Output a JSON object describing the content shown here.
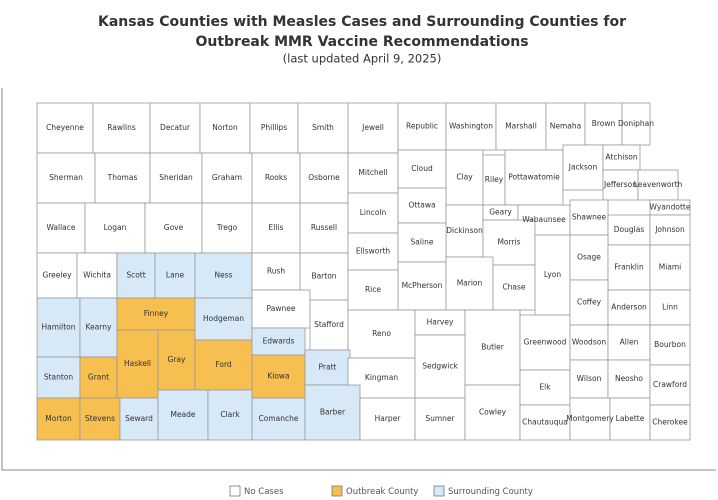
{
  "title": "Kansas Counties with Measles Cases and Surrounding Counties for",
  "title_line2": "Outbreak MMR Vaccine Recommendations",
  "subtitle": "(last updated April 9, 2025)",
  "legend": [
    {
      "name": "No Cases",
      "color": "#ffffff"
    },
    {
      "name": "Outbreak County",
      "color": "#f6bf4f"
    },
    {
      "name": "Surrounding County",
      "color": "#d7e8f6"
    }
  ],
  "counties": [
    {
      "name": "Cheyenne",
      "status": 0
    },
    {
      "name": "Rawlins",
      "status": 0
    },
    {
      "name": "Decatur",
      "status": 0
    },
    {
      "name": "Norton",
      "status": 0
    },
    {
      "name": "Phillips",
      "status": 0
    },
    {
      "name": "Smith",
      "status": 0
    },
    {
      "name": "Jewell",
      "status": 0
    },
    {
      "name": "Republic",
      "status": 0
    },
    {
      "name": "Washington",
      "status": 0
    },
    {
      "name": "Marshall",
      "status": 0
    },
    {
      "name": "Nemaha",
      "status": 0
    },
    {
      "name": "Brown",
      "status": 0
    },
    {
      "name": "Doniphan",
      "status": 0
    },
    {
      "name": "Sherman",
      "status": 0
    },
    {
      "name": "Thomas",
      "status": 0
    },
    {
      "name": "Sheridan",
      "status": 0
    },
    {
      "name": "Graham",
      "status": 0
    },
    {
      "name": "Rooks",
      "status": 0
    },
    {
      "name": "Osborne",
      "status": 0
    },
    {
      "name": "Mitchell",
      "status": 0
    },
    {
      "name": "Cloud",
      "status": 0
    },
    {
      "name": "Clay",
      "status": 0
    },
    {
      "name": "Riley",
      "status": 0
    },
    {
      "name": "Pottawatomie",
      "status": 0
    },
    {
      "name": "Jackson",
      "status": 0
    },
    {
      "name": "Atchison",
      "status": 0
    },
    {
      "name": "Jefferson",
      "status": 0
    },
    {
      "name": "Leavenworth",
      "status": 0
    },
    {
      "name": "Wyandotte",
      "status": 0
    },
    {
      "name": "Wallace",
      "status": 0
    },
    {
      "name": "Logan",
      "status": 0
    },
    {
      "name": "Gove",
      "status": 0
    },
    {
      "name": "Trego",
      "status": 0
    },
    {
      "name": "Ellis",
      "status": 0
    },
    {
      "name": "Russell",
      "status": 0
    },
    {
      "name": "Lincoln",
      "status": 0
    },
    {
      "name": "Ottawa",
      "status": 0
    },
    {
      "name": "Dickinson",
      "status": 0
    },
    {
      "name": "Geary",
      "status": 0
    },
    {
      "name": "Wabaunsee",
      "status": 0
    },
    {
      "name": "Shawnee",
      "status": 0
    },
    {
      "name": "Douglas",
      "status": 0
    },
    {
      "name": "Johnson",
      "status": 0
    },
    {
      "name": "Morris",
      "status": 0
    },
    {
      "name": "Greeley",
      "status": 0
    },
    {
      "name": "Wichita",
      "status": 0
    },
    {
      "name": "Scott",
      "status": 2
    },
    {
      "name": "Lane",
      "status": 2
    },
    {
      "name": "Ness",
      "status": 2
    },
    {
      "name": "Rush",
      "status": 0
    },
    {
      "name": "Barton",
      "status": 0
    },
    {
      "name": "Ellsworth",
      "status": 0
    },
    {
      "name": "Saline",
      "status": 0
    },
    {
      "name": "McPherson",
      "status": 0
    },
    {
      "name": "Marion",
      "status": 0
    },
    {
      "name": "Chase",
      "status": 0
    },
    {
      "name": "Lyon",
      "status": 0
    },
    {
      "name": "Osage",
      "status": 0
    },
    {
      "name": "Franklin",
      "status": 0
    },
    {
      "name": "Miami",
      "status": 0
    },
    {
      "name": "Hamilton",
      "status": 2
    },
    {
      "name": "Kearny",
      "status": 2
    },
    {
      "name": "Finney",
      "status": 1
    },
    {
      "name": "Hodgeman",
      "status": 2
    },
    {
      "name": "Pawnee",
      "status": 0
    },
    {
      "name": "Stafford",
      "status": 0
    },
    {
      "name": "Rice",
      "status": 0
    },
    {
      "name": "Reno",
      "status": 0
    },
    {
      "name": "Harvey",
      "status": 0
    },
    {
      "name": "Butler",
      "status": 0
    },
    {
      "name": "Greenwood",
      "status": 0
    },
    {
      "name": "Coffey",
      "status": 0
    },
    {
      "name": "Anderson",
      "status": 0
    },
    {
      "name": "Linn",
      "status": 0
    },
    {
      "name": "Stanton",
      "status": 2
    },
    {
      "name": "Grant",
      "status": 1
    },
    {
      "name": "Haskell",
      "status": 1
    },
    {
      "name": "Gray",
      "status": 1
    },
    {
      "name": "Ford",
      "status": 1
    },
    {
      "name": "Edwards",
      "status": 2
    },
    {
      "name": "Kiowa",
      "status": 1
    },
    {
      "name": "Pratt",
      "status": 2
    },
    {
      "name": "Kingman",
      "status": 0
    },
    {
      "name": "Sedgwick",
      "status": 0
    },
    {
      "name": "Woodson",
      "status": 0
    },
    {
      "name": "Allen",
      "status": 0
    },
    {
      "name": "Bourbon",
      "status": 0
    },
    {
      "name": "Morton",
      "status": 1
    },
    {
      "name": "Stevens",
      "status": 1
    },
    {
      "name": "Seward",
      "status": 2
    },
    {
      "name": "Meade",
      "status": 2
    },
    {
      "name": "Clark",
      "status": 2
    },
    {
      "name": "Comanche",
      "status": 2
    },
    {
      "name": "Barber",
      "status": 2
    },
    {
      "name": "Harper",
      "status": 0
    },
    {
      "name": "Sumner",
      "status": 0
    },
    {
      "name": "Cowley",
      "status": 0
    },
    {
      "name": "Elk",
      "status": 0
    },
    {
      "name": "Chautauqua",
      "status": 0
    },
    {
      "name": "Wilson",
      "status": 0
    },
    {
      "name": "Montgomery",
      "status": 0
    },
    {
      "name": "Neosho",
      "status": 0
    },
    {
      "name": "Labette",
      "status": 0
    },
    {
      "name": "Crawford",
      "status": 0
    },
    {
      "name": "Cherokee",
      "status": 0
    }
  ]
}
